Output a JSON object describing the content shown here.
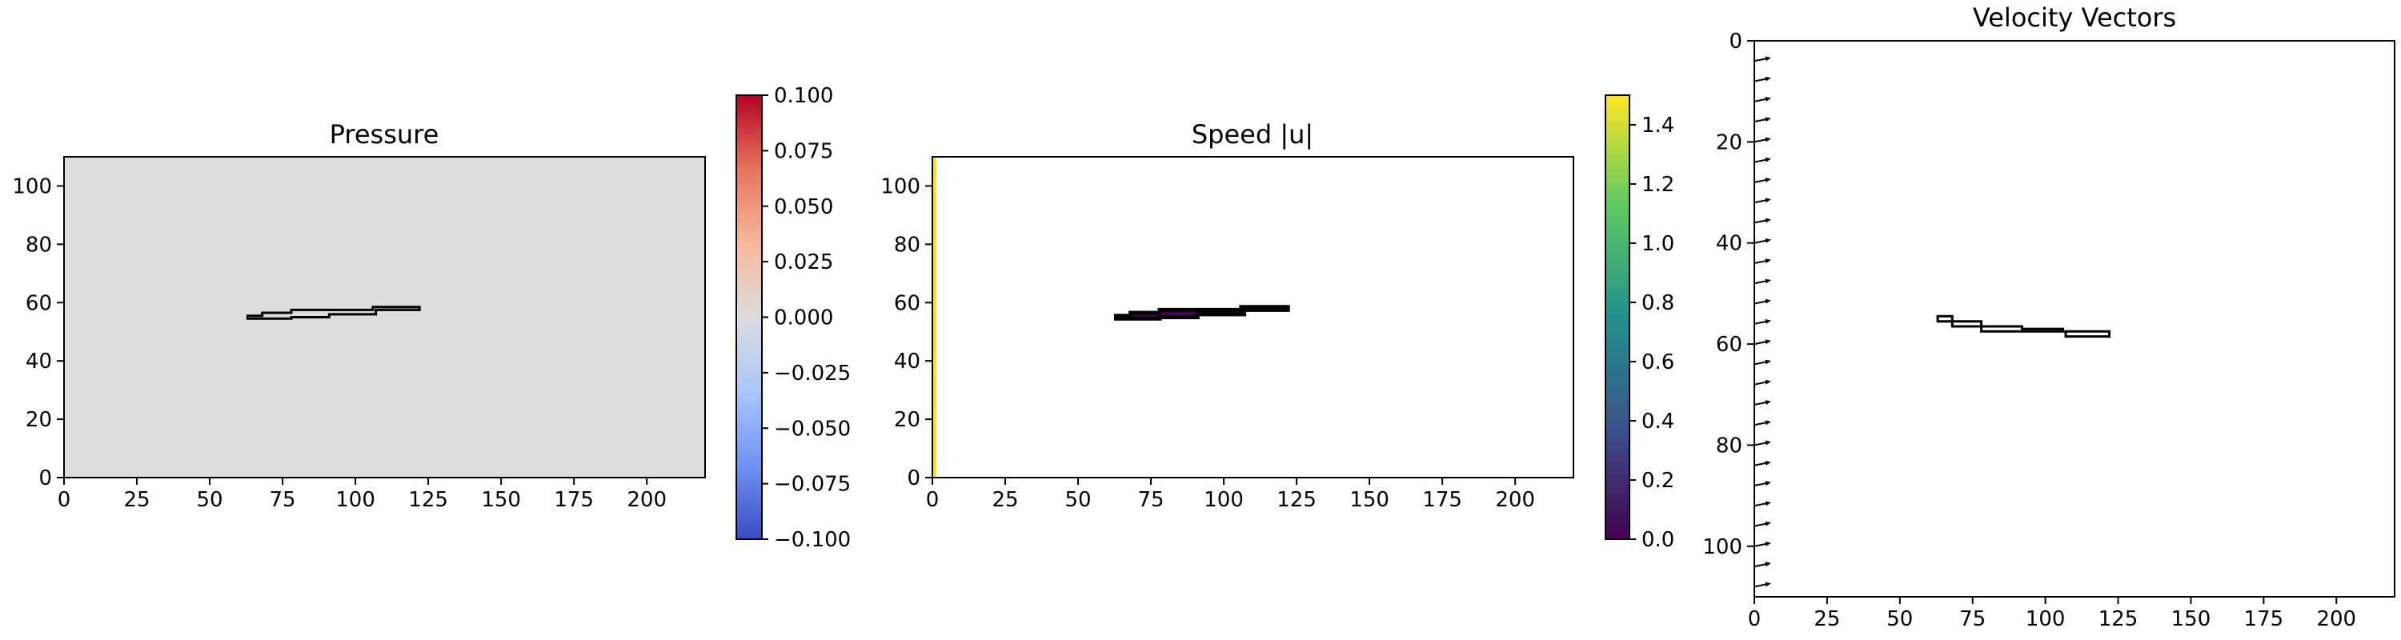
{
  "chart_data": [
    {
      "type": "heatmap",
      "title": "Pressure",
      "xlim": [
        0,
        220
      ],
      "ylim": [
        0,
        110
      ],
      "xticks": [
        0,
        25,
        50,
        75,
        100,
        125,
        150,
        175,
        200
      ],
      "yticks": [
        0,
        20,
        40,
        60,
        80,
        100
      ],
      "field_value": 0.0,
      "obstacle_outline": [
        [
          63,
          55.5
        ],
        [
          68,
          55.5
        ],
        [
          68,
          56.5
        ],
        [
          78,
          56.5
        ],
        [
          78,
          57.5
        ],
        [
          106,
          57.5
        ],
        [
          106,
          58.5
        ],
        [
          122,
          58.5
        ],
        [
          122,
          57.5
        ],
        [
          107,
          57.5
        ],
        [
          107,
          56
        ],
        [
          91,
          56
        ],
        [
          91,
          55
        ],
        [
          78,
          55
        ],
        [
          78,
          54.5
        ],
        [
          63,
          54.5
        ]
      ],
      "colorbar": {
        "colormap": "coolwarm",
        "min": -0.1,
        "max": 0.1,
        "ticks": [
          "0.100",
          "0.075",
          "0.050",
          "0.025",
          "0.000",
          "−0.025",
          "−0.050",
          "−0.075",
          "−0.100"
        ],
        "colors": [
          "#3b4cc0",
          "#6f92f3",
          "#aac7fd",
          "#dddcdc",
          "#f7b89c",
          "#e7745b",
          "#b40426"
        ]
      }
    },
    {
      "type": "heatmap",
      "title": "Speed |u|",
      "xlim": [
        0,
        220
      ],
      "ylim": [
        0,
        110
      ],
      "xticks": [
        0,
        25,
        50,
        75,
        100,
        125,
        150,
        175,
        200
      ],
      "yticks": [
        0,
        20,
        40,
        60,
        80,
        100
      ],
      "field_value": 0.0,
      "inflow_column_value": 1.5,
      "obstacle_outline": [
        [
          63,
          55.5
        ],
        [
          68,
          55.5
        ],
        [
          68,
          56.5
        ],
        [
          78,
          56.5
        ],
        [
          78,
          57.5
        ],
        [
          106,
          57.5
        ],
        [
          106,
          58.5
        ],
        [
          122,
          58.5
        ],
        [
          122,
          57.5
        ],
        [
          107,
          57.5
        ],
        [
          107,
          56
        ],
        [
          91,
          56
        ],
        [
          91,
          55
        ],
        [
          78,
          55
        ],
        [
          78,
          54.5
        ],
        [
          63,
          54.5
        ]
      ],
      "colorbar": {
        "colormap": "viridis",
        "min": 0.0,
        "max": 1.5,
        "ticks": [
          "1.4",
          "1.2",
          "1.0",
          "0.8",
          "0.6",
          "0.4",
          "0.2",
          "0.0"
        ],
        "tick_values": [
          1.4,
          1.2,
          1.0,
          0.8,
          0.6,
          0.4,
          0.2,
          0.0
        ],
        "colors": [
          "#440154",
          "#3b528b",
          "#21918c",
          "#5ec962",
          "#fde725"
        ]
      }
    },
    {
      "type": "scatter",
      "subtype": "quiver",
      "title": "Velocity Vectors",
      "xlim": [
        0,
        220
      ],
      "ylim": [
        110,
        0
      ],
      "xticks": [
        0,
        25,
        50,
        75,
        100,
        125,
        150,
        175,
        200
      ],
      "yticks": [
        0,
        20,
        40,
        60,
        80,
        100
      ],
      "arrow_x": 0,
      "arrow_y": [
        4,
        8,
        12,
        16,
        20,
        24,
        28,
        32,
        36,
        40,
        44,
        48,
        52,
        56,
        60,
        64,
        68,
        72,
        76,
        80,
        84,
        88,
        92,
        96,
        100,
        104,
        108
      ],
      "arrow_u": 1.5,
      "arrow_v": 0.3,
      "obstacle_outline": [
        [
          63,
          54.5
        ],
        [
          68,
          54.5
        ],
        [
          68,
          55.5
        ],
        [
          78,
          55.5
        ],
        [
          78,
          56.5
        ],
        [
          92,
          56.5
        ],
        [
          92,
          57
        ],
        [
          106,
          57
        ],
        [
          106,
          57.5
        ],
        [
          122,
          57.5
        ],
        [
          122,
          58.5
        ],
        [
          107,
          58.5
        ],
        [
          107,
          57.5
        ],
        [
          78,
          57.5
        ],
        [
          78,
          56.5
        ],
        [
          68,
          56.5
        ],
        [
          68,
          55.5
        ],
        [
          63,
          55.5
        ]
      ]
    }
  ]
}
